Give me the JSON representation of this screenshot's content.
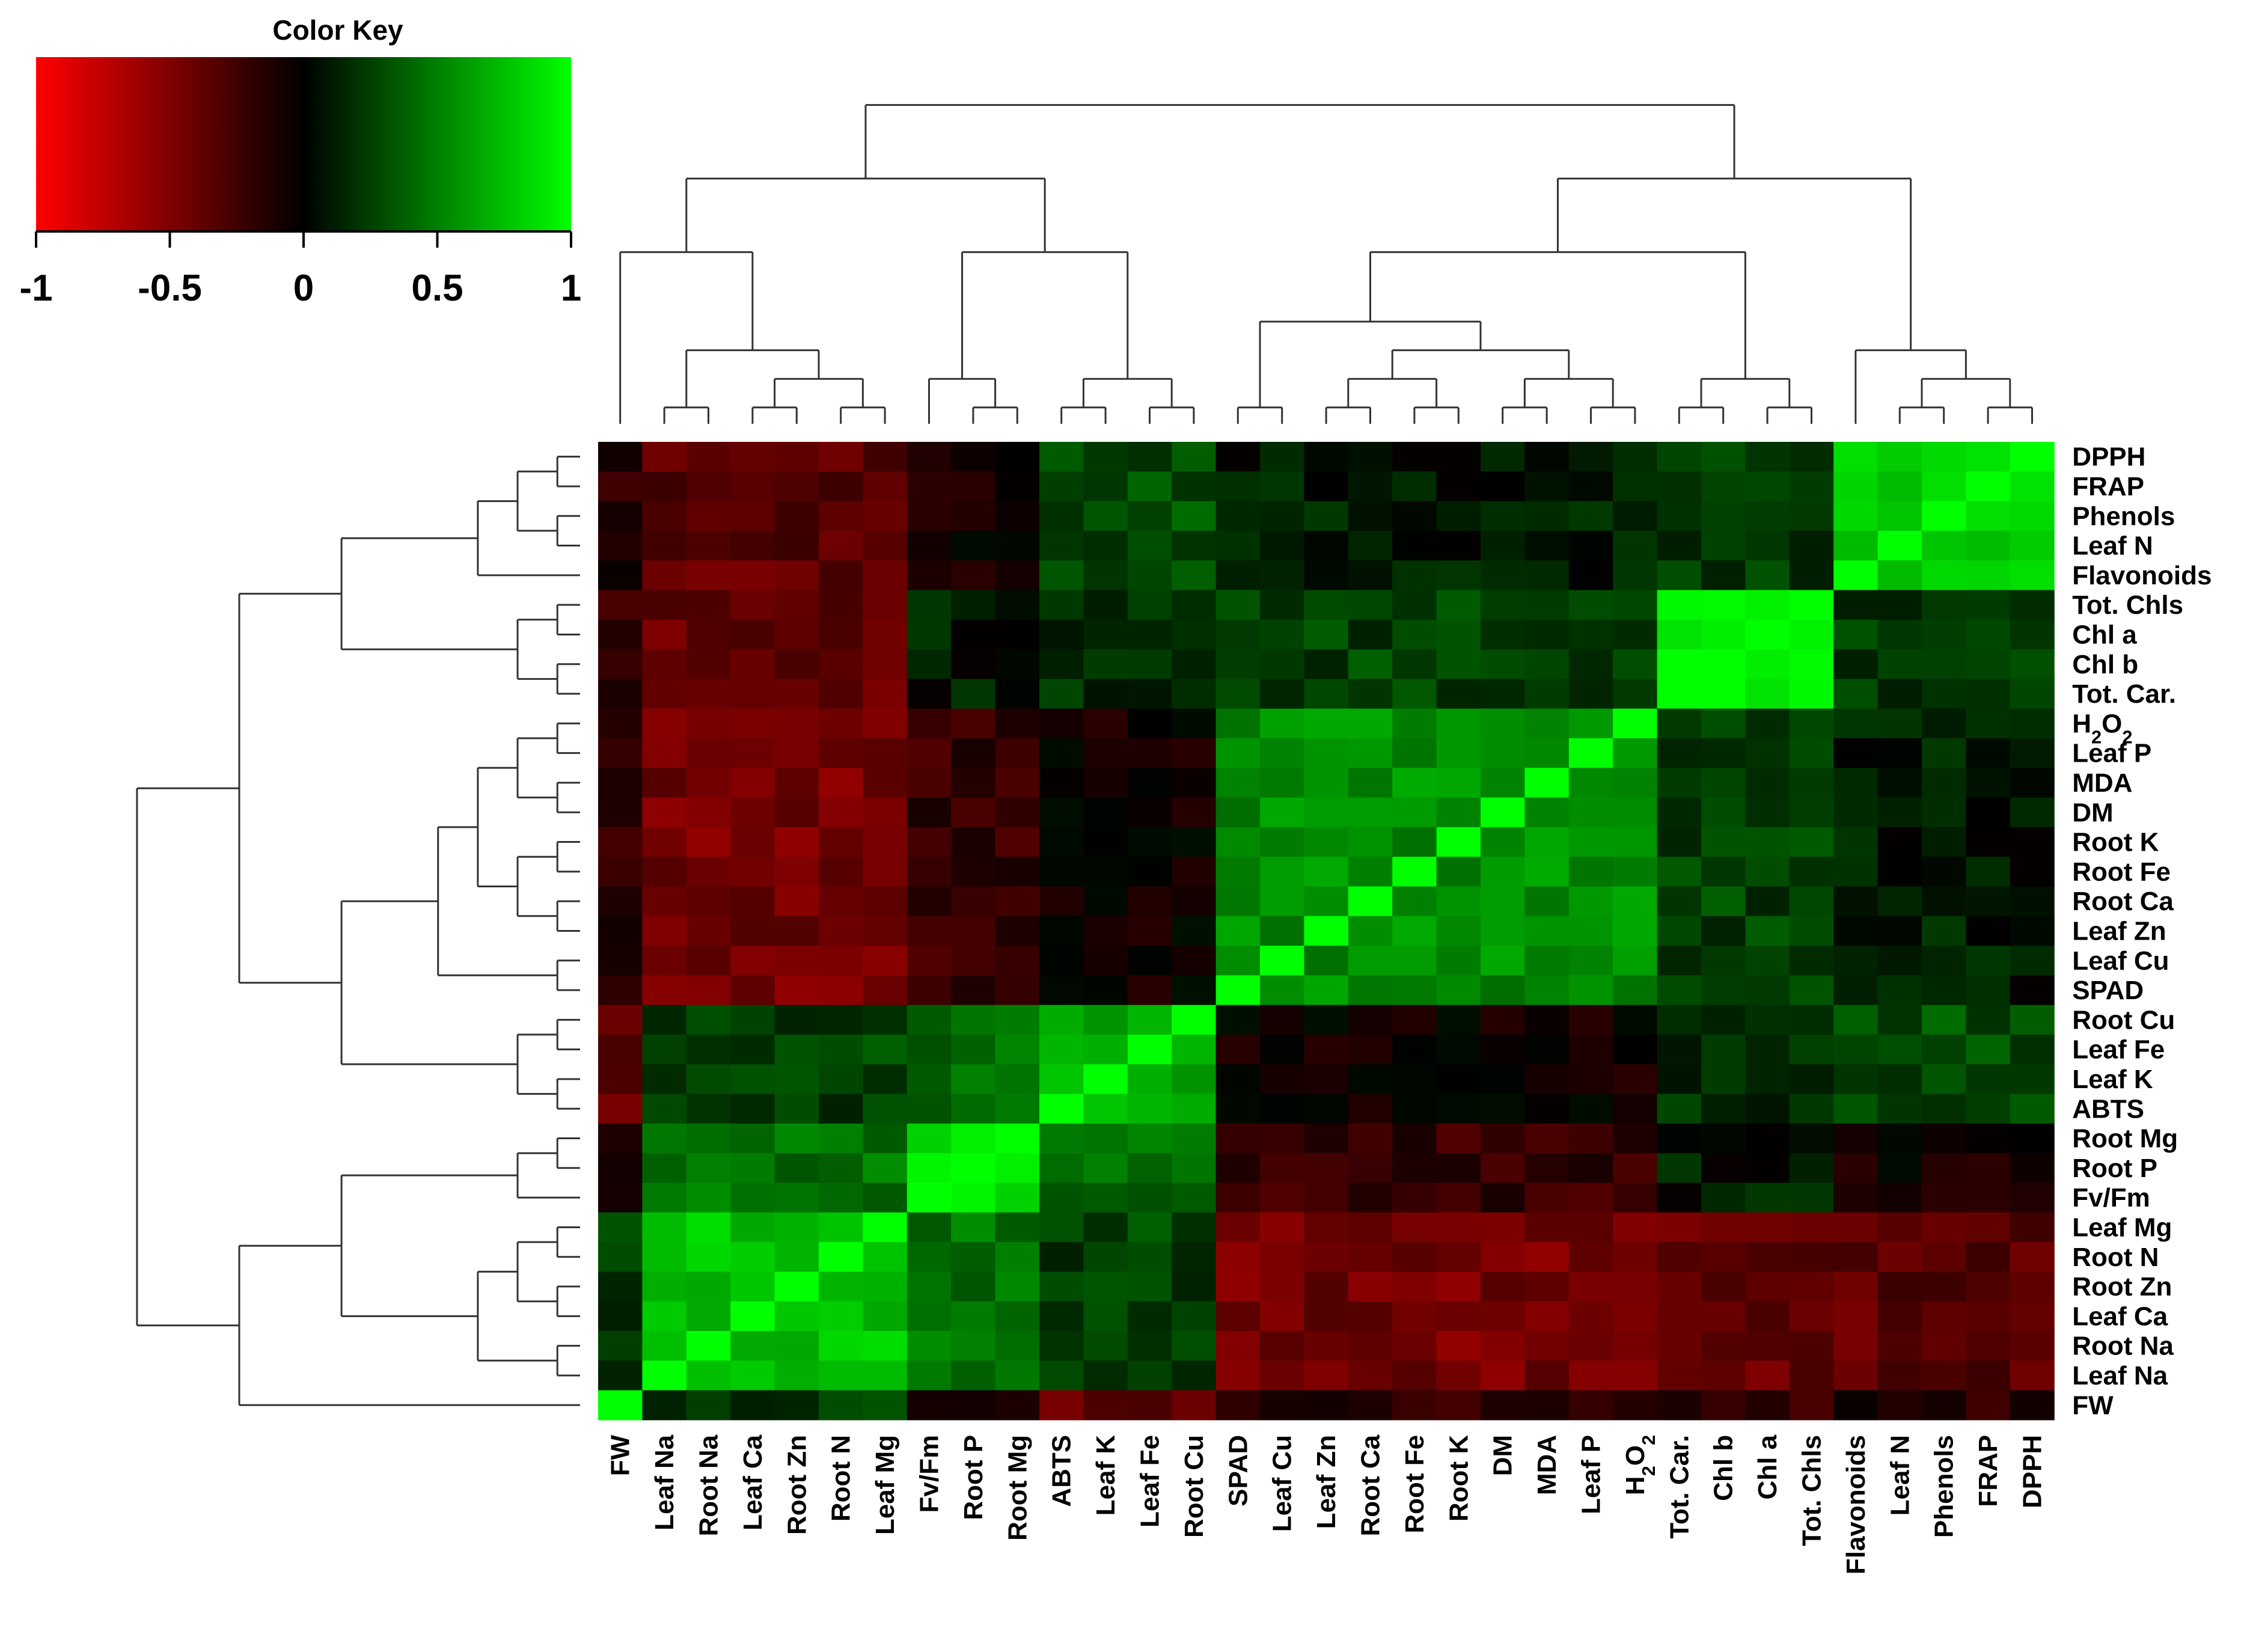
{
  "chart_data": {
    "type": "heatmap",
    "title": "",
    "color_key": {
      "title": "Color Key",
      "ticks": [
        "-1",
        "-0.5",
        "0",
        "0.5",
        "1"
      ],
      "range": [
        -1,
        1
      ],
      "low_color": "#ff0000",
      "mid_color": "#000000",
      "high_color": "#00ff00"
    },
    "columns": [
      "FW",
      "Leaf Na",
      "Root Na",
      "Leaf Ca",
      "Root Zn",
      "Root N",
      "Leaf Mg",
      "Fv/Fm",
      "Root P",
      "Root Mg",
      "ABTS",
      "Leaf K",
      "Leaf Fe",
      "Root Cu",
      "SPAD",
      "Leaf Cu",
      "Leaf Zn",
      "Root Ca",
      "Root Fe",
      "Root K",
      "DM",
      "MDA",
      "Leaf P",
      "H2O2",
      "Tot. Car.",
      "Chl b",
      "Chl a",
      "Tot. Chls",
      "Flavonoids",
      "Leaf N",
      "Phenols",
      "FRAP",
      "DPPH"
    ],
    "rows": [
      "DPPH",
      "FRAP",
      "Phenols",
      "Leaf N",
      "Flavonoids",
      "Tot. Chls",
      "Chl a",
      "Chl b",
      "Tot. Car.",
      "H2O2",
      "Leaf P",
      "MDA",
      "DM",
      "Root K",
      "Root Fe",
      "Root Ca",
      "Leaf Zn",
      "Leaf Cu",
      "SPAD",
      "Root Cu",
      "Leaf Fe",
      "Leaf K",
      "ABTS",
      "Root Mg",
      "Root P",
      "Fv/Fm",
      "Leaf Mg",
      "Root N",
      "Root Zn",
      "Leaf Ca",
      "Root Na",
      "Leaf Na",
      "FW"
    ],
    "groups": [
      [
        "DPPH",
        "FRAP",
        "Phenols",
        "Leaf N",
        "Flavonoids"
      ],
      [
        "Tot. Chls",
        "Chl a",
        "Chl b",
        "Tot. Car."
      ],
      [
        "H2O2",
        "Leaf P",
        "MDA",
        "DM",
        "Root K",
        "Root Fe",
        "Root Ca",
        "Leaf Zn",
        "Leaf Cu",
        "SPAD"
      ],
      [
        "Root Cu",
        "Leaf Fe",
        "Leaf K",
        "ABTS"
      ],
      [
        "Root Mg",
        "Root P",
        "Fv/Fm"
      ],
      [
        "Leaf Mg",
        "Root N",
        "Root Zn",
        "Leaf Ca",
        "Root Na",
        "Leaf Na"
      ],
      [
        "FW"
      ]
    ],
    "group_correlations": [
      [
        0.85,
        0.2,
        0.1,
        0.3,
        -0.05,
        -0.35,
        -0.15
      ],
      [
        0.2,
        0.95,
        0.25,
        0.15,
        0.1,
        -0.4,
        -0.2
      ],
      [
        0.1,
        0.25,
        0.55,
        -0.05,
        -0.2,
        -0.45,
        -0.15
      ],
      [
        0.3,
        0.15,
        -0.05,
        0.65,
        0.4,
        0.25,
        -0.35
      ],
      [
        -0.05,
        0.1,
        -0.2,
        0.4,
        0.85,
        0.45,
        -0.1
      ],
      [
        -0.35,
        -0.4,
        -0.45,
        0.25,
        0.45,
        0.75,
        0.2
      ],
      [
        -0.15,
        -0.2,
        -0.15,
        -0.35,
        -0.1,
        0.2,
        1.0
      ]
    ],
    "axis_labels": {
      "x": "",
      "y": ""
    }
  }
}
